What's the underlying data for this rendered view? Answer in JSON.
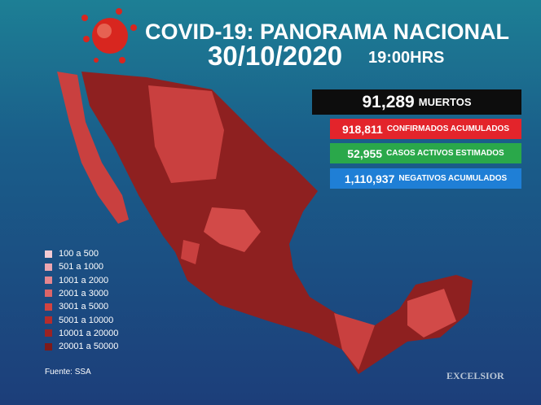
{
  "header": {
    "title": "COVID-19: PANORAMA NACIONAL",
    "date": "30/10/2020",
    "time": "19:00HRS"
  },
  "stats": [
    {
      "value": "91,289",
      "label": "MUERTOS",
      "color": "#0d0d0d"
    },
    {
      "value": "918,811",
      "label": "CONFIRMADOS ACUMULADOS",
      "color": "#e3242b"
    },
    {
      "value": "52,955",
      "label": "CASOS ACTIVOS ESTIMADOS",
      "color": "#2aa84a"
    },
    {
      "value": "1,110,937",
      "label": "NEGATIVOS ACUMULADOS",
      "color": "#1f7fd6"
    }
  ],
  "legend": [
    {
      "label": "100 a 500",
      "color": "#f4cbd3"
    },
    {
      "label": "501 a 1000",
      "color": "#eea6b0"
    },
    {
      "label": "1001 a 2000",
      "color": "#e6868f"
    },
    {
      "label": "2001 a 3000",
      "color": "#dc6568"
    },
    {
      "label": "3001 a 5000",
      "color": "#d24340"
    },
    {
      "label": "5001 a 10000",
      "color": "#b72c2c"
    },
    {
      "label": "10001 a 20000",
      "color": "#9b2323"
    },
    {
      "label": "20001 a 50000",
      "color": "#7e1a1a"
    }
  ],
  "source": "Fuente: SSA",
  "brand": "EXCELSIOR"
}
